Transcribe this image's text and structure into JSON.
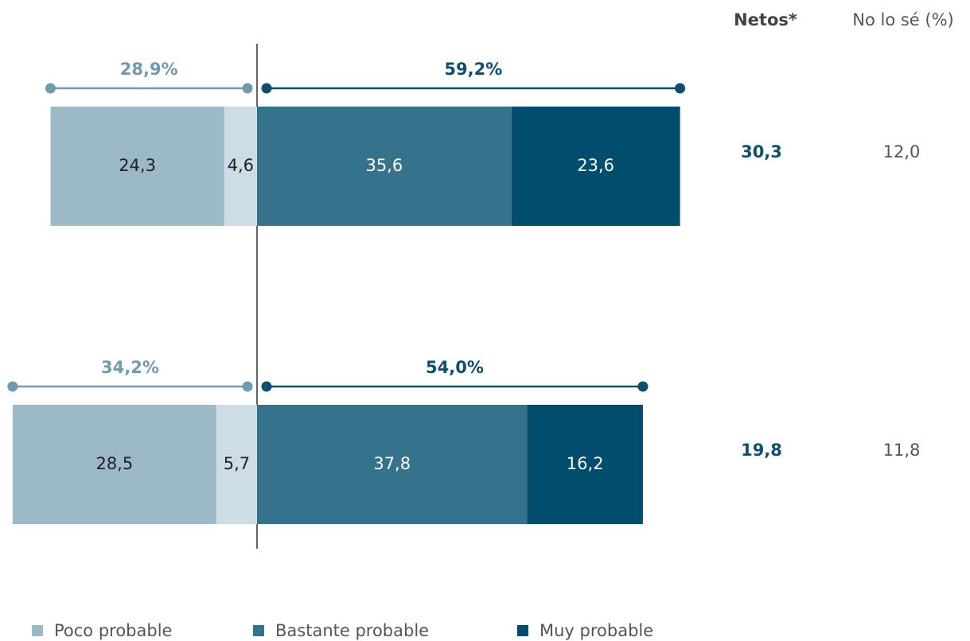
{
  "chart_data": {
    "type": "diverging_bar",
    "categories": [
      null,
      null
    ],
    "series": [
      {
        "color": "#cddde5",
        "side": "left",
        "text_color": "#222222",
        "values": [
          4.6,
          5.7
        ],
        "value_labels": [
          "4,6",
          "5,7"
        ]
      },
      {
        "name": "Poco probable",
        "color": "#9bb9c7",
        "side": "left",
        "text_color": "#222222",
        "values": [
          24.3,
          28.5
        ],
        "value_labels": [
          "24,3",
          "28,5"
        ]
      },
      {
        "name": "Bastante probable",
        "color": "#35728c",
        "side": "right",
        "text_color": "#ffffff",
        "values": [
          35.6,
          37.8
        ],
        "value_labels": [
          "35,6",
          "37,8"
        ]
      },
      {
        "name": "Muy probable",
        "color": "#004d6e",
        "side": "right",
        "text_color": "#ffffff",
        "values": [
          23.6,
          16.2
        ],
        "value_labels": [
          "23,6",
          "16,2"
        ]
      }
    ],
    "left_totals": {
      "color": "#6f9bb0",
      "values": [
        28.9,
        34.2
      ],
      "value_labels": [
        "28,9%",
        "34,2%"
      ]
    },
    "right_totals": {
      "color": "#0d4f6e",
      "values": [
        59.2,
        54.0
      ],
      "value_labels": [
        "59,2%",
        "54,0%"
      ]
    },
    "netos": {
      "title": "Netos*",
      "color": "#0d4f6e",
      "values": [
        30.3,
        19.8
      ],
      "value_labels": [
        "30,3",
        "19,8"
      ]
    },
    "no_lo_se": {
      "title": "No lo sé (%)",
      "color": "#555555",
      "values": [
        12.0,
        11.8
      ],
      "value_labels": [
        "12,0",
        "11,8"
      ]
    }
  }
}
